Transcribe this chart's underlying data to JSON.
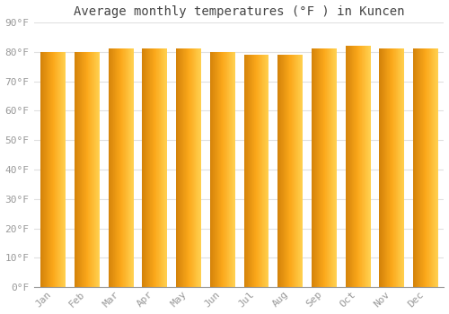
{
  "title": "Average monthly temperatures (°F ) in Kuncen",
  "months": [
    "Jan",
    "Feb",
    "Mar",
    "Apr",
    "May",
    "Jun",
    "Jul",
    "Aug",
    "Sep",
    "Oct",
    "Nov",
    "Dec"
  ],
  "values": [
    80,
    80,
    81,
    81,
    81,
    80,
    79,
    79,
    81,
    82,
    81,
    81
  ],
  "ylim": [
    0,
    90
  ],
  "yticks": [
    0,
    10,
    20,
    30,
    40,
    50,
    60,
    70,
    80,
    90
  ],
  "ytick_labels": [
    "0°F",
    "10°F",
    "20°F",
    "30°F",
    "40°F",
    "50°F",
    "60°F",
    "70°F",
    "80°F",
    "90°F"
  ],
  "bar_color_dark": "#D4830A",
  "bar_color_mid": "#FBA81A",
  "bar_color_light": "#FFCD44",
  "bar_outline": "#B87A08",
  "background_color": "#FFFFFF",
  "grid_color": "#E0E0E0",
  "title_color": "#444444",
  "tick_color": "#999999",
  "title_fontsize": 10,
  "tick_fontsize": 8,
  "bar_width": 0.72
}
